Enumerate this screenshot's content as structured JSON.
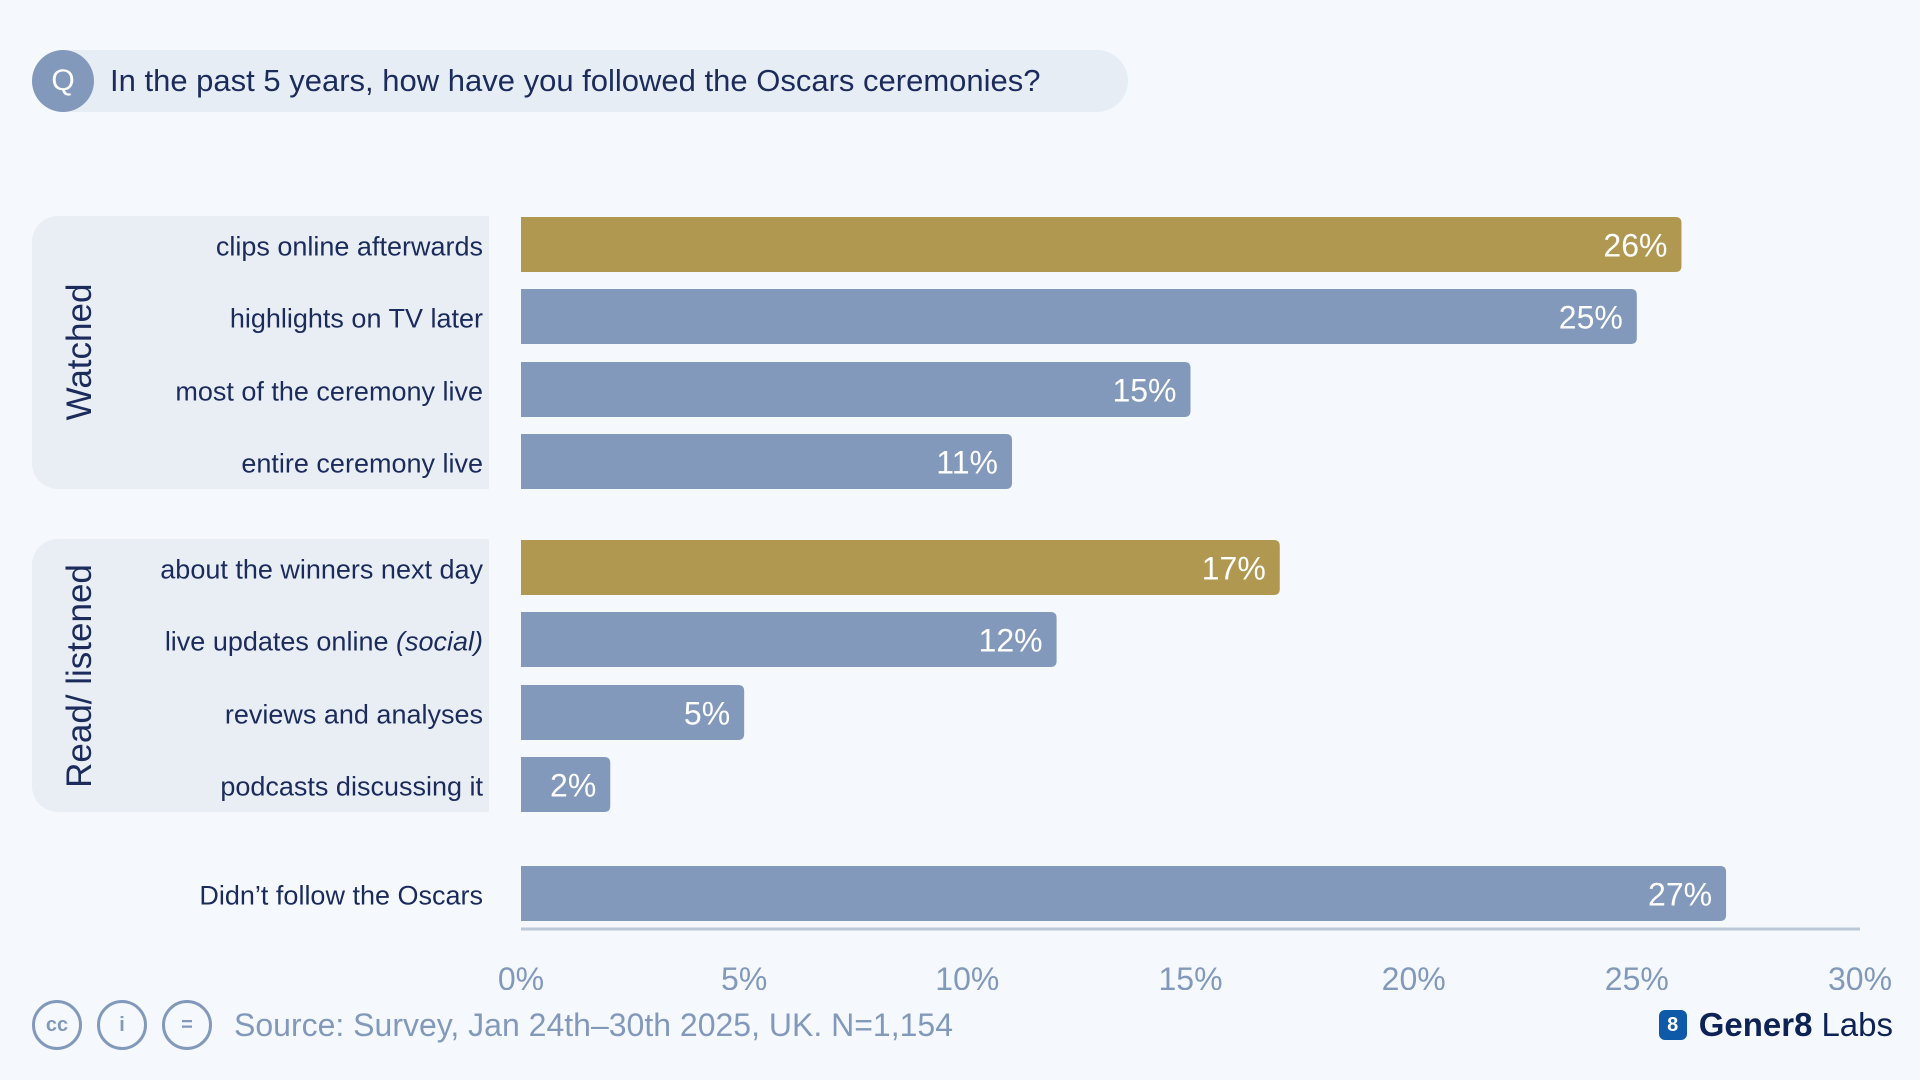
{
  "question": {
    "badge": "Q",
    "text": "In the past 5 years, how have you followed the Oscars ceremonies?"
  },
  "groups": {
    "watched": "Watched",
    "read": "Read/ listened"
  },
  "colors": {
    "highlight": "#b09850",
    "bar": "#8399bb",
    "text": "#1a2b5c",
    "axis": "#8299bb"
  },
  "chart_data": {
    "type": "bar",
    "orientation": "horizontal",
    "unit": "%",
    "xlim": [
      0,
      30
    ],
    "ticks": [
      0,
      5,
      10,
      15,
      20,
      25,
      30
    ],
    "tick_labels": [
      "0%",
      "5%",
      "10%",
      "15%",
      "20%",
      "25%",
      "30%"
    ],
    "categories": [
      {
        "label": "clips online afterwards",
        "value": 26,
        "group": "Watched",
        "highlight": true
      },
      {
        "label": "highlights on TV later",
        "value": 25,
        "group": "Watched",
        "highlight": false
      },
      {
        "label": "most of the ceremony live",
        "value": 15,
        "group": "Watched",
        "highlight": false
      },
      {
        "label": "entire ceremony live",
        "value": 11,
        "group": "Watched",
        "highlight": false
      },
      {
        "label": "about the winners next day",
        "value": 17,
        "group": "Read/ listened",
        "highlight": true
      },
      {
        "label": "live updates online",
        "label_suffix": "(social)",
        "value": 12,
        "group": "Read/ listened",
        "highlight": false
      },
      {
        "label": "reviews and analyses",
        "value": 5,
        "group": "Read/ listened",
        "highlight": false
      },
      {
        "label": "podcasts discussing it",
        "value": 2,
        "group": "Read/ listened",
        "highlight": false
      },
      {
        "label": "Didn’t follow the Oscars",
        "value": 27,
        "group": "",
        "highlight": false
      }
    ],
    "value_labels": [
      "26%",
      "25%",
      "15%",
      "11%",
      "17%",
      "12%",
      "5%",
      "2%",
      "27%"
    ]
  },
  "footer": {
    "license_icons": [
      "cc-icon",
      "by-icon",
      "nd-icon"
    ],
    "license_glyphs": [
      "cc",
      "i",
      "="
    ],
    "source": "Source: Survey, Jan 24th–30th 2025, UK. N=1,154",
    "brand_mark": "8",
    "brand_bold": "Gener8",
    "brand_light": "Labs"
  }
}
